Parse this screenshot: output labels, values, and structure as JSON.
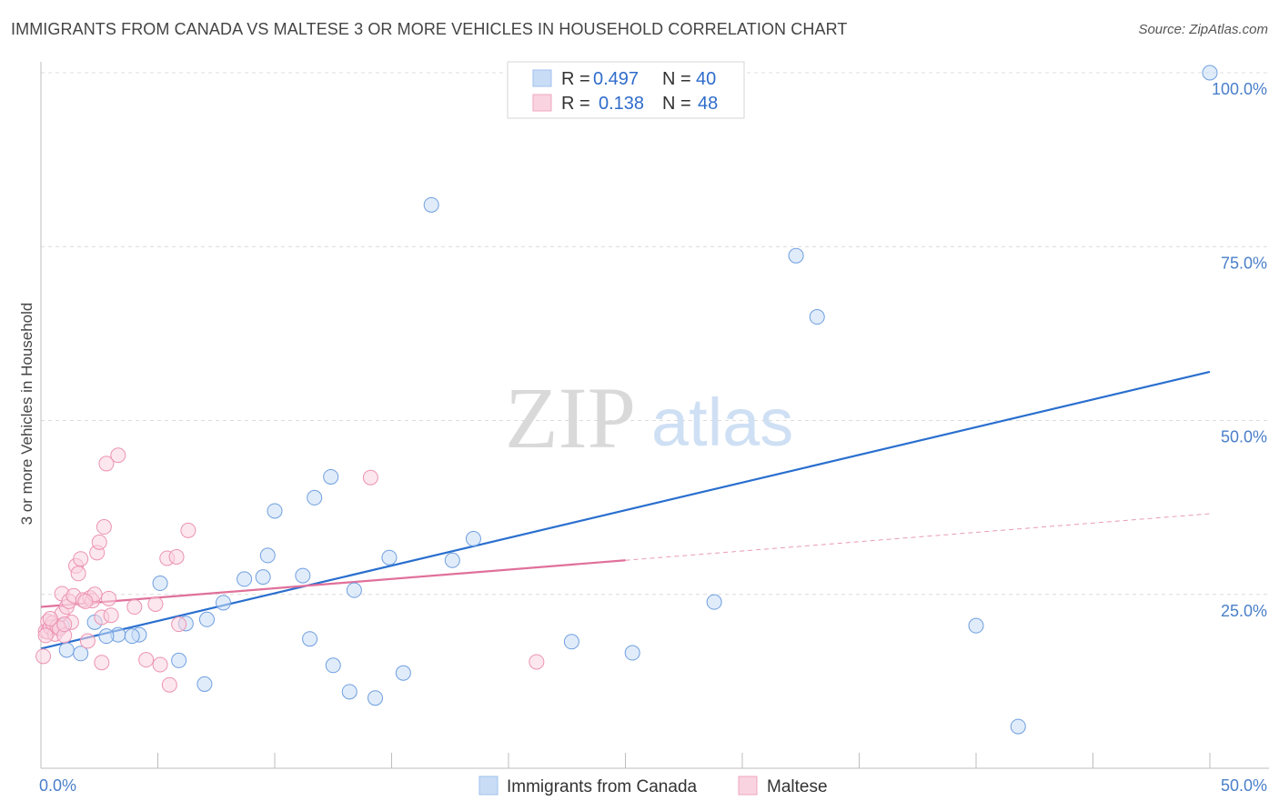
{
  "title": "IMMIGRANTS FROM CANADA VS MALTESE 3 OR MORE VEHICLES IN HOUSEHOLD CORRELATION CHART",
  "source": "Source: ZipAtlas.com",
  "watermark": {
    "zip": "ZIP",
    "atlas": "atlas"
  },
  "legend": {
    "r_label": "R =",
    "n_label": "N =",
    "rows": [
      {
        "r": "0.497",
        "n": "40",
        "color": "#9fc0ee",
        "fill": "#c9dcf5"
      },
      {
        "r": "0.138",
        "n": "48",
        "color": "#f0a6c0",
        "fill": "#f9d3e0"
      }
    ]
  },
  "chart_data": {
    "type": "scatter",
    "title": "IMMIGRANTS FROM CANADA VS MALTESE 3 OR MORE VEHICLES IN HOUSEHOLD CORRELATION CHART",
    "xlabel": "",
    "ylabel": "3 or more Vehicles in Household",
    "xlim": [
      0,
      50
    ],
    "ylim": [
      0,
      100
    ],
    "x_tick_labels": [
      "0.0%",
      "50.0%"
    ],
    "y_tick_labels": [
      "25.0%",
      "50.0%",
      "75.0%",
      "100.0%"
    ],
    "y_ticks": [
      25,
      50,
      75,
      100
    ],
    "series": [
      {
        "name": "Immigrants from Canada",
        "color": "#6f9fe0",
        "fill": "#c9dcf5",
        "trend_color": "#2a6fce",
        "trend": {
          "x0": 0,
          "y0": 17.2,
          "x1": 50,
          "y1": 57.0
        },
        "points": [
          [
            0.5,
            20.3
          ],
          [
            0.9,
            20.5
          ],
          [
            1.1,
            17.0
          ],
          [
            1.7,
            16.5
          ],
          [
            2.3,
            21.0
          ],
          [
            3.3,
            19.2
          ],
          [
            2.8,
            19.0
          ],
          [
            4.2,
            19.2
          ],
          [
            5.1,
            26.6
          ],
          [
            3.9,
            19.0
          ],
          [
            5.9,
            15.5
          ],
          [
            6.2,
            20.8
          ],
          [
            7.0,
            12.1
          ],
          [
            7.1,
            21.4
          ],
          [
            7.8,
            23.8
          ],
          [
            9.7,
            30.6
          ],
          [
            12.4,
            41.9
          ],
          [
            11.2,
            27.7
          ],
          [
            11.7,
            38.9
          ],
          [
            9.5,
            27.5
          ],
          [
            11.5,
            18.6
          ],
          [
            10.0,
            37.0
          ],
          [
            8.7,
            27.2
          ],
          [
            12.5,
            14.8
          ],
          [
            13.4,
            25.6
          ],
          [
            13.2,
            11.0
          ],
          [
            14.3,
            10.1
          ],
          [
            14.9,
            30.3
          ],
          [
            15.5,
            13.7
          ],
          [
            16.7,
            81.0
          ],
          [
            17.6,
            29.9
          ],
          [
            18.5,
            33.0
          ],
          [
            22.7,
            18.2
          ],
          [
            25.3,
            16.6
          ],
          [
            28.8,
            23.9
          ],
          [
            32.3,
            73.7
          ],
          [
            33.2,
            64.9
          ],
          [
            40.0,
            20.5
          ],
          [
            41.8,
            6.0
          ],
          [
            50.0,
            100.0
          ]
        ]
      },
      {
        "name": "Maltese",
        "color": "#ec93b2",
        "fill": "#f9d3e0",
        "trend_color": "#e0709a",
        "trend": {
          "x0": 0,
          "y0": 23.2,
          "x1": 25,
          "y1": 29.9
        },
        "trend_ext": {
          "x0": 25,
          "y0": 29.9,
          "x1": 50,
          "y1": 36.6
        },
        "points": [
          [
            0.1,
            16.1
          ],
          [
            0.2,
            19.7
          ],
          [
            0.3,
            21.1
          ],
          [
            0.3,
            19.6
          ],
          [
            0.4,
            20.3
          ],
          [
            0.5,
            20.9
          ],
          [
            0.6,
            19.3
          ],
          [
            0.7,
            20.4
          ],
          [
            0.8,
            20.1
          ],
          [
            0.9,
            25.1
          ],
          [
            0.9,
            22.2
          ],
          [
            1.0,
            19.1
          ],
          [
            1.1,
            23.2
          ],
          [
            1.2,
            24.0
          ],
          [
            1.3,
            21.0
          ],
          [
            1.4,
            24.8
          ],
          [
            1.5,
            29.1
          ],
          [
            1.6,
            28.0
          ],
          [
            1.7,
            30.1
          ],
          [
            1.8,
            24.2
          ],
          [
            2.0,
            18.3
          ],
          [
            2.1,
            24.5
          ],
          [
            2.2,
            24.1
          ],
          [
            2.3,
            25.0
          ],
          [
            2.4,
            31.0
          ],
          [
            2.5,
            32.5
          ],
          [
            2.6,
            15.2
          ],
          [
            2.6,
            21.7
          ],
          [
            2.7,
            34.7
          ],
          [
            2.8,
            43.8
          ],
          [
            2.9,
            24.4
          ],
          [
            3.0,
            22.0
          ],
          [
            3.3,
            45.0
          ],
          [
            4.0,
            23.2
          ],
          [
            4.5,
            15.6
          ],
          [
            4.9,
            23.6
          ],
          [
            5.1,
            14.9
          ],
          [
            5.4,
            30.2
          ],
          [
            5.5,
            12.0
          ],
          [
            5.8,
            30.4
          ],
          [
            5.9,
            20.7
          ],
          [
            6.3,
            34.2
          ],
          [
            14.1,
            41.8
          ],
          [
            21.2,
            15.3
          ],
          [
            0.4,
            21.5
          ],
          [
            1.0,
            20.7
          ],
          [
            1.9,
            24.0
          ],
          [
            0.2,
            19.1
          ]
        ]
      }
    ]
  },
  "bottom_legend": [
    {
      "label": "Immigrants from Canada",
      "color": "#9fc0ee",
      "fill": "#c9dcf5"
    },
    {
      "label": "Maltese",
      "color": "#f0a6c0",
      "fill": "#f9d3e0"
    }
  ]
}
